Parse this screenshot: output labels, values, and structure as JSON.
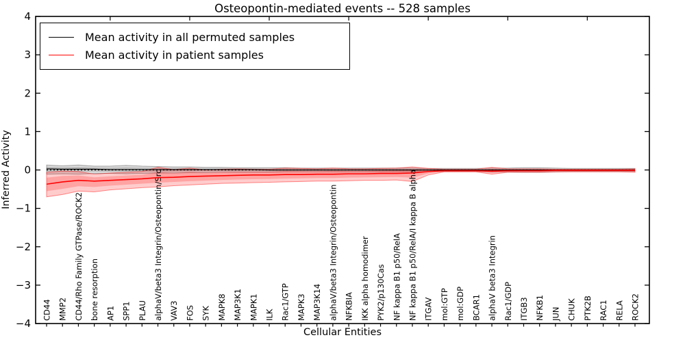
{
  "title": "Osteopontin-mediated events -- 528 samples",
  "axes": {
    "ylabel": "Inferred Activity",
    "xlabel": "Cellular Entities"
  },
  "legend": {
    "entries": [
      {
        "label": "Mean activity in all permuted samples",
        "color": "#000000"
      },
      {
        "label": "Mean activity in patient samples",
        "color": "#ff0000"
      }
    ],
    "position": "upper left"
  },
  "chart_data": {
    "type": "line",
    "title": "Osteopontin-mediated events -- 528 samples",
    "xlabel": "Cellular Entities",
    "ylabel": "Inferred Activity",
    "ylim": [
      -4,
      4
    ],
    "yticks": [
      4,
      3,
      2,
      1,
      0,
      -1,
      -2,
      -3,
      -4
    ],
    "grid": false,
    "zero_line": true,
    "legend_position": "upper left",
    "categories": [
      "CD44",
      "MMP2",
      "CD44/Rho Family GTPase/ROCK2",
      "bone resorption",
      "AP1",
      "SPP1",
      "PLAU",
      "alphaV/beta3 Integrin/Osteopontin/Src",
      "VAV3",
      "FOS",
      "SYK",
      "MAPK8",
      "MAP3K1",
      "MAPK1",
      "ILK",
      "Rac1/GTP",
      "MAPK3",
      "MAP3K14",
      "alphaV/beta3 Integrin/Osteopontin",
      "NFKBIA",
      "IKK alpha homodimer",
      "PYK2/p130Cas",
      "NF kappa B1 p50/RelA",
      "NF kappa B1 p50/RelA/I kappa B alpha",
      "ITGAV",
      "mol:GTP",
      "mol:GDP",
      "BCAR1",
      "alphaV beta3 Integrin",
      "Rac1/GDP",
      "ITGB3",
      "NFKB1",
      "JUN",
      "CHUK",
      "PTK2B",
      "RAC1",
      "RELA",
      "ROCK2"
    ],
    "series": [
      {
        "name": "Mean activity in all permuted samples",
        "color": "#000000",
        "band_color": "#000000",
        "band_opacity": 0.14,
        "values": [
          0.03,
          0.02,
          0.02,
          0.02,
          0.01,
          0.01,
          0.01,
          0.01,
          0.01,
          0.01,
          0.01,
          0.01,
          0.01,
          0.01,
          0.0,
          0.0,
          0.0,
          0.0,
          0.0,
          0.0,
          0.0,
          0.0,
          0.0,
          0.0,
          0.0,
          0.0,
          0.0,
          0.0,
          0.0,
          0.0,
          0.0,
          0.0,
          0.0,
          0.0,
          0.0,
          0.0,
          0.0,
          0.0
        ],
        "band_upper": [
          0.13,
          0.11,
          0.13,
          0.1,
          0.1,
          0.12,
          0.1,
          0.09,
          0.08,
          0.08,
          0.07,
          0.07,
          0.06,
          0.06,
          0.06,
          0.06,
          0.05,
          0.05,
          0.05,
          0.05,
          0.05,
          0.05,
          0.05,
          0.05,
          0.04,
          0.04,
          0.04,
          0.04,
          0.05,
          0.05,
          0.06,
          0.06,
          0.05,
          0.04,
          0.04,
          0.04,
          0.04,
          0.04
        ],
        "band_lower": [
          -0.11,
          -0.1,
          -0.11,
          -0.09,
          -0.09,
          -0.1,
          -0.09,
          -0.08,
          -0.08,
          -0.07,
          -0.07,
          -0.06,
          -0.06,
          -0.06,
          -0.06,
          -0.05,
          -0.05,
          -0.05,
          -0.05,
          -0.05,
          -0.05,
          -0.05,
          -0.05,
          -0.05,
          -0.04,
          -0.04,
          -0.04,
          -0.04,
          -0.05,
          -0.05,
          -0.06,
          -0.06,
          -0.05,
          -0.04,
          -0.04,
          -0.04,
          -0.04,
          -0.04
        ]
      },
      {
        "name": "Mean activity in patient samples",
        "color": "#ff0000",
        "band_color": "#ff0000",
        "band_opacity": 0.2,
        "values": [
          -0.37,
          -0.31,
          -0.27,
          -0.29,
          -0.27,
          -0.25,
          -0.23,
          -0.2,
          -0.19,
          -0.17,
          -0.16,
          -0.15,
          -0.14,
          -0.13,
          -0.13,
          -0.12,
          -0.12,
          -0.11,
          -0.11,
          -0.1,
          -0.1,
          -0.09,
          -0.09,
          -0.08,
          -0.04,
          -0.02,
          -0.02,
          -0.02,
          -0.03,
          -0.02,
          -0.02,
          -0.02,
          -0.01,
          -0.01,
          -0.01,
          -0.01,
          -0.01,
          -0.01
        ],
        "band_upper": [
          -0.06,
          -0.03,
          -0.04,
          -0.11,
          -0.08,
          -0.06,
          -0.04,
          0.07,
          0.01,
          0.05,
          0.0,
          0.02,
          0.03,
          0.02,
          0.02,
          0.05,
          0.04,
          0.03,
          0.05,
          0.03,
          0.03,
          0.04,
          0.05,
          0.08,
          0.04,
          0.02,
          0.02,
          0.02,
          0.07,
          0.03,
          0.03,
          0.03,
          0.02,
          0.02,
          0.02,
          0.02,
          0.02,
          0.03
        ],
        "band_lower": [
          -0.7,
          -0.64,
          -0.55,
          -0.57,
          -0.52,
          -0.49,
          -0.46,
          -0.44,
          -0.41,
          -0.39,
          -0.37,
          -0.35,
          -0.34,
          -0.33,
          -0.32,
          -0.31,
          -0.3,
          -0.29,
          -0.29,
          -0.28,
          -0.27,
          -0.27,
          -0.26,
          -0.3,
          -0.13,
          -0.05,
          -0.05,
          -0.05,
          -0.11,
          -0.06,
          -0.06,
          -0.06,
          -0.05,
          -0.05,
          -0.05,
          -0.05,
          -0.05,
          -0.06
        ]
      }
    ]
  }
}
